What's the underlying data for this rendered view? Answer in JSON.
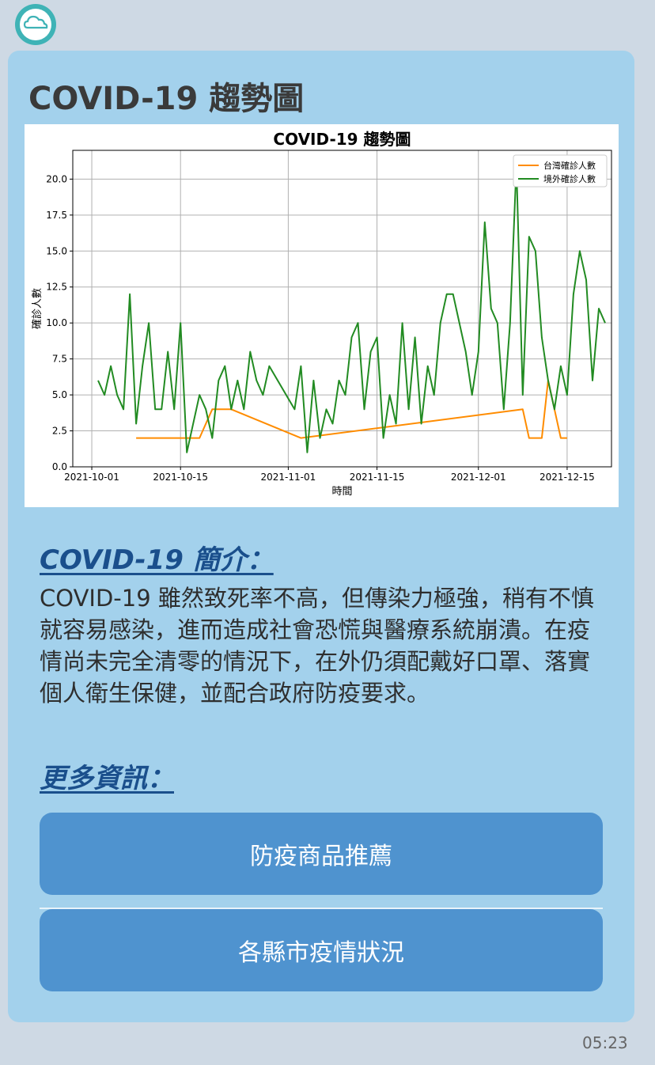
{
  "message": {
    "title": "COVID-19 趨勢圖",
    "intro_heading": "COVID-19 簡介：",
    "intro_text": "COVID-19 雖然致死率不高，但傳染力極強，稍有不慎就容易感染，進而造成社會恐慌與醫療系統崩潰。在疫情尚未完全清零的情況下，在外仍須配戴好口罩、落實個人衛生保健，並配合政府防疫要求。",
    "more_heading": "更多資訊：",
    "buttons": [
      "防疫商品推薦",
      "各縣市疫情狀況"
    ],
    "timestamp": "05:23"
  },
  "avatar": {
    "icon": "airgist-logo-icon"
  },
  "colors": {
    "background": "#ced9e4",
    "bubble": "#a3d1ec",
    "button": "#4f93cf",
    "heading": "#1a4f8c",
    "taiwan_series": "#ff8c00",
    "overseas_series": "#228b22"
  },
  "chart_data": {
    "type": "line",
    "title": "COVID-19 趨勢圖",
    "xlabel": "時間",
    "ylabel": "確診人數",
    "xlim": [
      "2021-09-28",
      "2021-12-22"
    ],
    "ylim": [
      0,
      22
    ],
    "xticks": [
      "2021-10-01",
      "2021-10-15",
      "2021-11-01",
      "2021-11-15",
      "2021-12-01",
      "2021-12-15"
    ],
    "yticks": [
      0.0,
      2.5,
      5.0,
      7.5,
      10.0,
      12.5,
      15.0,
      17.5,
      20.0
    ],
    "grid": true,
    "legend_position": "top-right",
    "series": [
      {
        "name": "台灣確診人數",
        "color": "#ff8c00",
        "points": [
          [
            "2021-10-08",
            2
          ],
          [
            "2021-10-18",
            2
          ],
          [
            "2021-10-20",
            4
          ],
          [
            "2021-10-23",
            4
          ],
          [
            "2021-11-03",
            2
          ],
          [
            "2021-12-08",
            4
          ],
          [
            "2021-12-09",
            2
          ],
          [
            "2021-12-11",
            2
          ],
          [
            "2021-12-12",
            6
          ],
          [
            "2021-12-14",
            2
          ],
          [
            "2021-12-15",
            2
          ]
        ]
      },
      {
        "name": "境外確診人數",
        "color": "#228b22",
        "points": [
          [
            "2021-10-02",
            6
          ],
          [
            "2021-10-03",
            5
          ],
          [
            "2021-10-04",
            7
          ],
          [
            "2021-10-05",
            5
          ],
          [
            "2021-10-06",
            4
          ],
          [
            "2021-10-07",
            12
          ],
          [
            "2021-10-08",
            3
          ],
          [
            "2021-10-09",
            7
          ],
          [
            "2021-10-10",
            10
          ],
          [
            "2021-10-11",
            4
          ],
          [
            "2021-10-12",
            4
          ],
          [
            "2021-10-13",
            8
          ],
          [
            "2021-10-14",
            4
          ],
          [
            "2021-10-15",
            10
          ],
          [
            "2021-10-16",
            1
          ],
          [
            "2021-10-18",
            5
          ],
          [
            "2021-10-19",
            4
          ],
          [
            "2021-10-20",
            2
          ],
          [
            "2021-10-21",
            6
          ],
          [
            "2021-10-22",
            7
          ],
          [
            "2021-10-23",
            4
          ],
          [
            "2021-10-24",
            6
          ],
          [
            "2021-10-25",
            4
          ],
          [
            "2021-10-26",
            8
          ],
          [
            "2021-10-27",
            6
          ],
          [
            "2021-10-28",
            5
          ],
          [
            "2021-10-29",
            7
          ],
          [
            "2021-11-02",
            4
          ],
          [
            "2021-11-03",
            7
          ],
          [
            "2021-11-04",
            1
          ],
          [
            "2021-11-05",
            6
          ],
          [
            "2021-11-06",
            2
          ],
          [
            "2021-11-07",
            4
          ],
          [
            "2021-11-08",
            3
          ],
          [
            "2021-11-09",
            6
          ],
          [
            "2021-11-10",
            5
          ],
          [
            "2021-11-11",
            9
          ],
          [
            "2021-11-12",
            10
          ],
          [
            "2021-11-13",
            4
          ],
          [
            "2021-11-14",
            8
          ],
          [
            "2021-11-15",
            9
          ],
          [
            "2021-11-16",
            2
          ],
          [
            "2021-11-17",
            5
          ],
          [
            "2021-11-18",
            3
          ],
          [
            "2021-11-19",
            10
          ],
          [
            "2021-11-20",
            4
          ],
          [
            "2021-11-21",
            9
          ],
          [
            "2021-11-22",
            3
          ],
          [
            "2021-11-23",
            7
          ],
          [
            "2021-11-24",
            5
          ],
          [
            "2021-11-25",
            10
          ],
          [
            "2021-11-26",
            12
          ],
          [
            "2021-11-27",
            12
          ],
          [
            "2021-11-29",
            8
          ],
          [
            "2021-11-30",
            5
          ],
          [
            "2021-12-01",
            8
          ],
          [
            "2021-12-02",
            17
          ],
          [
            "2021-12-03",
            11
          ],
          [
            "2021-12-04",
            10
          ],
          [
            "2021-12-05",
            4
          ],
          [
            "2021-12-06",
            10
          ],
          [
            "2021-12-07",
            21
          ],
          [
            "2021-12-08",
            5
          ],
          [
            "2021-12-09",
            16
          ],
          [
            "2021-12-10",
            15
          ],
          [
            "2021-12-11",
            9
          ],
          [
            "2021-12-12",
            6
          ],
          [
            "2021-12-13",
            4
          ],
          [
            "2021-12-14",
            7
          ],
          [
            "2021-12-15",
            5
          ],
          [
            "2021-12-16",
            12
          ],
          [
            "2021-12-17",
            15
          ],
          [
            "2021-12-18",
            13
          ],
          [
            "2021-12-19",
            6
          ],
          [
            "2021-12-20",
            11
          ],
          [
            "2021-12-21",
            10
          ]
        ]
      }
    ]
  }
}
